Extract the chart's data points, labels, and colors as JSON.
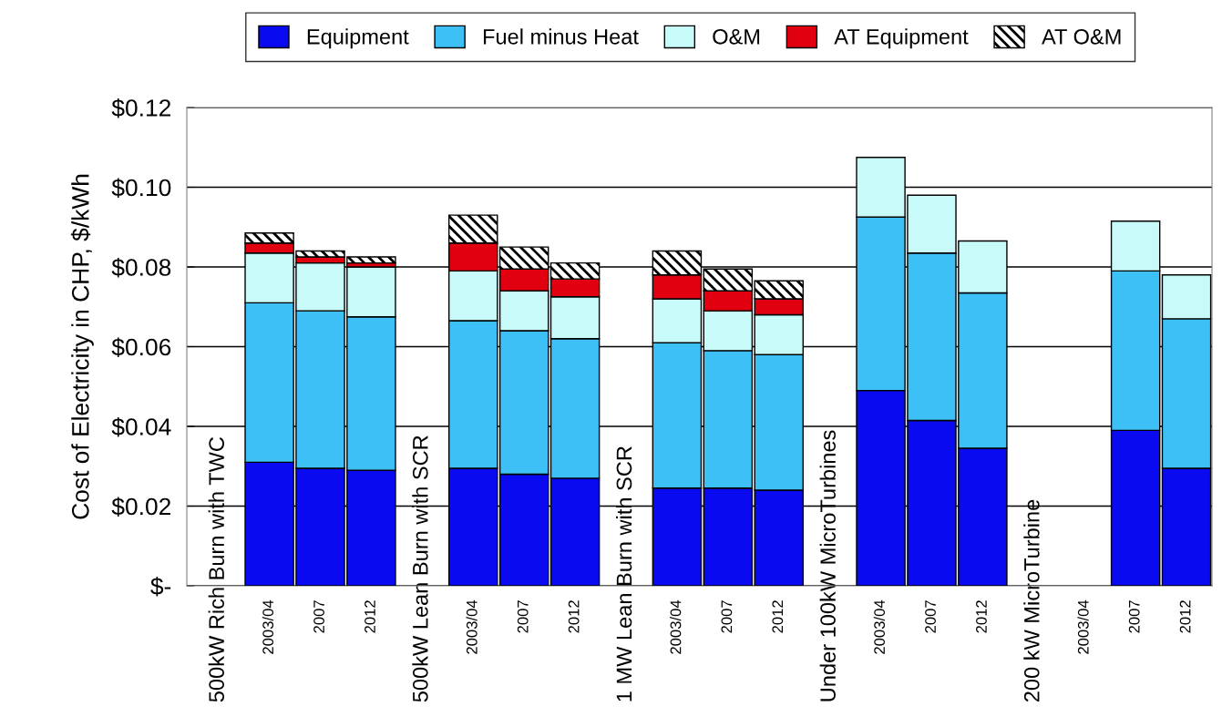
{
  "chart_data": {
    "type": "bar",
    "stacked": true,
    "ylabel": "Cost of Electricity in CHP, $/kWh",
    "categories": [
      "500kW Rich Burn with TWC",
      "2003/04",
      "2007",
      "2012",
      "500kW Lean Burn with SCR",
      "2003/04",
      "2007",
      "2012",
      "1 MW Lean Burn with SCR",
      "2003/04",
      "2007",
      "2012",
      "Under 100kW MicroTurbines",
      "2003/04",
      "2007",
      "2012",
      "200 kW MicroTurbine",
      "2003/04",
      "2007",
      "2012"
    ],
    "series": [
      {
        "name": "Equipment",
        "color": "#0a0af0",
        "values": [
          null,
          0.031,
          0.0295,
          0.029,
          null,
          0.0295,
          0.028,
          0.027,
          null,
          0.0245,
          0.0245,
          0.024,
          null,
          0.049,
          0.0415,
          0.0345,
          null,
          null,
          0.039,
          0.0295
        ]
      },
      {
        "name": "Fuel minus Heat",
        "color": "#3cc0f5",
        "values": [
          null,
          0.04,
          0.0395,
          0.0385,
          null,
          0.037,
          0.036,
          0.035,
          null,
          0.0365,
          0.0345,
          0.034,
          null,
          0.0435,
          0.042,
          0.039,
          null,
          null,
          0.04,
          0.0375
        ]
      },
      {
        "name": "O&M",
        "color": "#c8fafa",
        "values": [
          null,
          0.0125,
          0.012,
          0.0125,
          null,
          0.0125,
          0.01,
          0.0105,
          null,
          0.011,
          0.01,
          0.01,
          null,
          0.015,
          0.0145,
          0.013,
          null,
          null,
          0.0125,
          0.011
        ]
      },
      {
        "name": "AT Equipment",
        "color": "#e00010",
        "values": [
          null,
          0.0025,
          0.0015,
          0.001,
          null,
          0.007,
          0.0055,
          0.0045,
          null,
          0.006,
          0.005,
          0.004,
          null,
          null,
          null,
          null,
          null,
          null,
          null,
          null
        ]
      },
      {
        "name": "AT O&M",
        "color": "#000000",
        "values": [
          null,
          0.0025,
          0.0015,
          0.0015,
          null,
          0.007,
          0.0055,
          0.004,
          null,
          0.006,
          0.0055,
          0.0045,
          null,
          null,
          null,
          null,
          null,
          null,
          null,
          null
        ]
      }
    ],
    "ylim": [
      0,
      0.12
    ],
    "yticks": [
      {
        "value": 0,
        "label": "$-"
      },
      {
        "value": 0.02,
        "label": "$0.02"
      },
      {
        "value": 0.04,
        "label": "$0.04"
      },
      {
        "value": 0.06,
        "label": "$0.06"
      },
      {
        "value": 0.08,
        "label": "$0.08"
      },
      {
        "value": 0.1,
        "label": "$0.10"
      },
      {
        "value": 0.12,
        "label": "$0.12"
      }
    ],
    "grid": "y",
    "legend": "top"
  }
}
